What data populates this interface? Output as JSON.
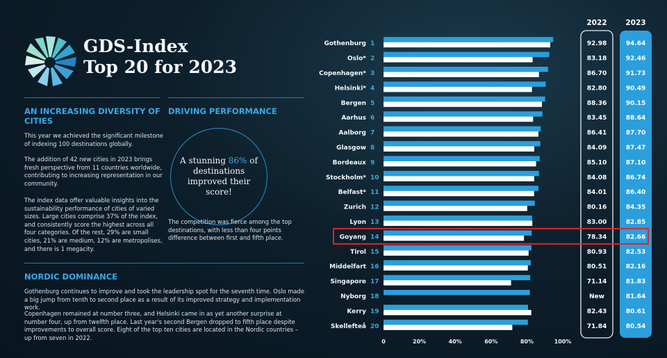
{
  "header": {
    "title_line1": "GDS-Index",
    "title_line2": "Top 20 for 2023"
  },
  "sections": {
    "diversity": {
      "heading": "AN INCREASING DIVERSITY OF CITIES",
      "p1": "This year we achieved the significant milestone of indexing 100 destinations globally.",
      "p2": "The addition of 42 new cities in 2023 brings fresh perspective from 11 countries worldwide, contributing to increasing representation in our community.",
      "p3": "The index data offer valuable insights into the sustainability performance of cities of varied sizes. Large cities comprise 37% of the index, and consistently score the highest across all four categories. Of the rest, 29% are small cities, 21% are medium, 12% are metropolises, and there is 1 megacity."
    },
    "driving": {
      "heading": "DRIVING PERFORMANCE",
      "circle_before": "A stunning",
      "circle_highlight": "86%",
      "circle_after": "of destinations improved their score!",
      "paragraph": "The competition was fierce among the top destinations, with less than four points difference between first and fifth place."
    },
    "nordic": {
      "heading": "NORDIC DOMINANCE",
      "p1": "Gothenburg continues to improve and took the leadership spot for the seventh time. Oslo made a big jump from tenth to second place as a result of its improved strategy and implementation work.",
      "p2": "Copenhagen remained at number three, and Helsinki came in as yet another surprise at number four, up from twelfth place. Last year's second Bergen dropped to fifth place despite improvements to overall score. Eight of the top ten cities are located in the Nordic countries – up from seven in 2022."
    }
  },
  "colors": {
    "bar_2023": "#2a9fdc",
    "bar_2022": "#ffffff",
    "highlight_box": "#e0242b",
    "accent": "#39a8e6"
  },
  "chart_data": {
    "type": "bar",
    "orientation": "horizontal",
    "categories": [
      "Gothenburg",
      "Oslo*",
      "Copenhagen*",
      "Helsinki*",
      "Bergen",
      "Aarhus",
      "Aalborg",
      "Glasgow",
      "Bordeaux",
      "Stockholm*",
      "Belfast*",
      "Zurich",
      "Lyon",
      "Goyang",
      "Tirol",
      "Middelfart",
      "Singapore",
      "Nyborg",
      "Kerry",
      "Skellefteå"
    ],
    "ranks": [
      "1",
      "2",
      "3",
      "4",
      "5",
      "6",
      "7",
      "8",
      "9",
      "10",
      "11",
      "12",
      "13",
      "14",
      "15",
      "16",
      "17",
      "18",
      "19",
      "20"
    ],
    "series": [
      {
        "name": "2023",
        "values": [
          94.64,
          92.46,
          91.73,
          90.49,
          90.15,
          88.64,
          87.7,
          87.47,
          87.1,
          86.74,
          86.4,
          84.35,
          82.85,
          82.66,
          82.53,
          82.16,
          81.83,
          81.64,
          80.61,
          80.54
        ]
      },
      {
        "name": "2022",
        "values": [
          92.98,
          83.18,
          86.7,
          82.8,
          88.36,
          83.45,
          86.41,
          84.09,
          85.1,
          84.08,
          84.01,
          80.16,
          83.0,
          78.34,
          80.93,
          80.51,
          71.14,
          null,
          82.43,
          71.84
        ]
      }
    ],
    "value_labels_2023": [
      "94.64",
      "92.46",
      "91.73",
      "90.49",
      "90.15",
      "88.64",
      "87.70",
      "87.47",
      "87.10",
      "86.74",
      "86.40",
      "84.35",
      "82.85",
      "82.66",
      "82.53",
      "82.16",
      "81.83",
      "81.64",
      "80.61",
      "80.54"
    ],
    "value_labels_2022": [
      "92.98",
      "83.18",
      "86.70",
      "82.80",
      "88.36",
      "83.45",
      "86.41",
      "84.09",
      "85.10",
      "84.08",
      "84.01",
      "80.16",
      "83.00",
      "78.34",
      "80.93",
      "80.51",
      "71.14",
      "New",
      "82.43",
      "71.84"
    ],
    "column_headers": [
      "2022",
      "2023"
    ],
    "x_ticks": [
      "0",
      "20%",
      "40%",
      "60%",
      "80%",
      "100%"
    ],
    "xlim": [
      0,
      100
    ],
    "highlighted_category": "Goyang",
    "grid": false
  }
}
